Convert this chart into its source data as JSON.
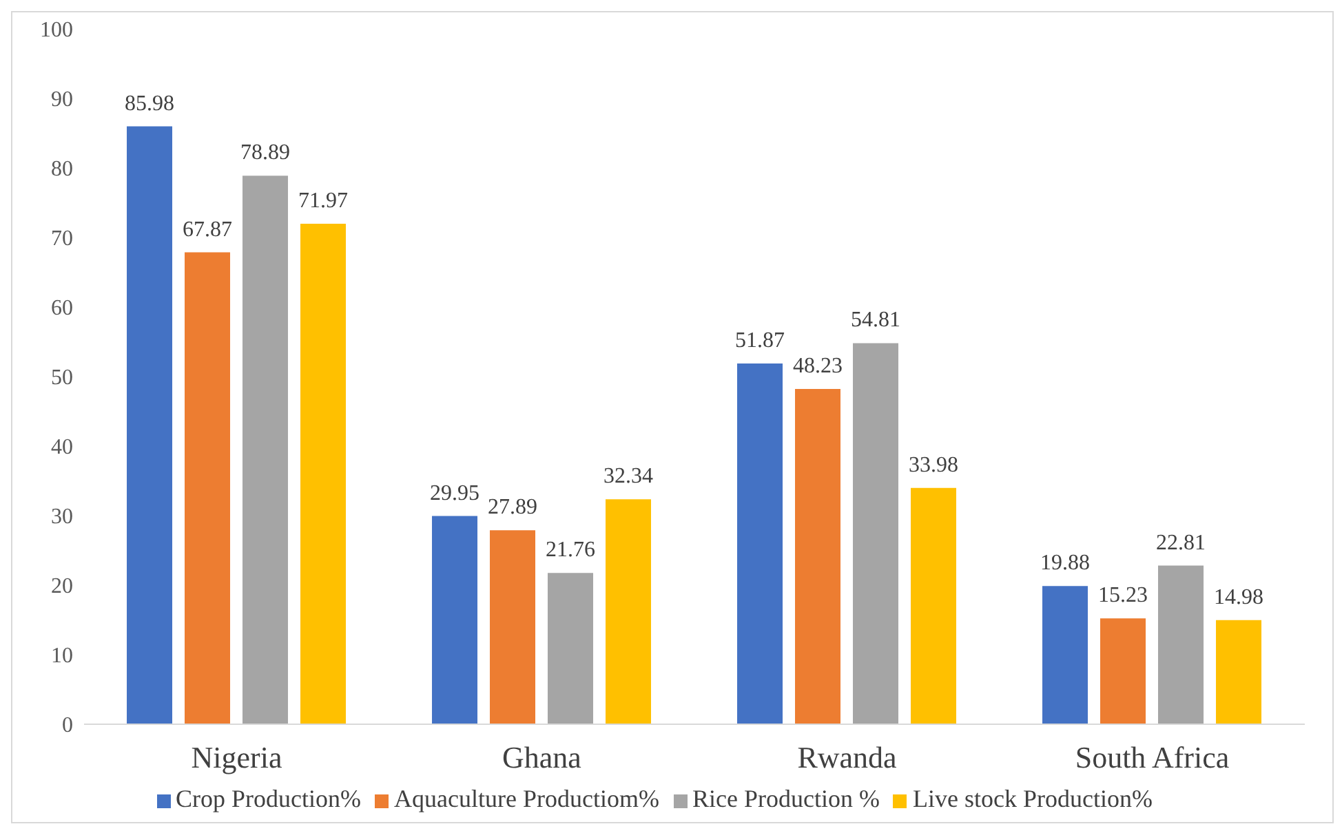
{
  "chart_data": {
    "type": "bar",
    "categories": [
      "Nigeria",
      "Ghana",
      "Rwanda",
      "South Africa"
    ],
    "series": [
      {
        "name": "Crop Production%",
        "color": "#4472c4",
        "values": [
          85.98,
          29.95,
          51.87,
          19.88
        ]
      },
      {
        "name": "Aquaculture Productiom%",
        "color": "#ed7d31",
        "values": [
          67.87,
          27.89,
          48.23,
          15.23
        ]
      },
      {
        "name": "Rice Production %",
        "color": "#a5a5a5",
        "values": [
          78.89,
          21.76,
          54.81,
          22.81
        ]
      },
      {
        "name": "Live stock Production%",
        "color": "#ffc000",
        "values": [
          71.97,
          32.34,
          33.98,
          14.98
        ]
      }
    ],
    "ylim": [
      0,
      100
    ],
    "yticks": [
      0,
      10,
      20,
      30,
      40,
      50,
      60,
      70,
      80,
      90,
      100
    ],
    "grid": false,
    "legend": "bottom",
    "data_labels": true
  }
}
